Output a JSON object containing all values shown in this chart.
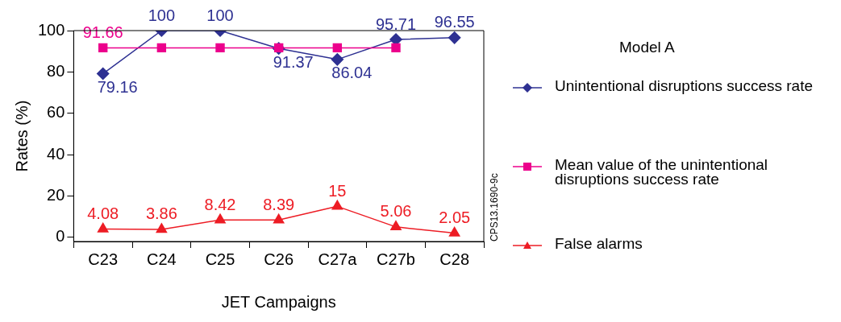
{
  "chart_data": {
    "type": "line",
    "xlabel": "JET Campaigns",
    "ylabel": "Rates (%)",
    "legend_title": "Model A",
    "legend": "right",
    "grid": false,
    "categories": [
      "C23",
      "C24",
      "C25",
      "C26",
      "C27a",
      "C27b",
      "C28"
    ],
    "ylim": [
      -2,
      100
    ],
    "yticks": [
      0,
      20,
      40,
      60,
      80,
      100
    ],
    "series": [
      {
        "name": "Unintentional disruptions success rate",
        "color": "#2e3192",
        "marker": "diamond",
        "values": [
          79.16,
          100,
          100,
          91.37,
          86.04,
          95.71,
          96.55
        ],
        "value_labels": [
          "79.16",
          "100",
          "100",
          "91.37",
          "86.04",
          "95.71",
          "96.55"
        ]
      },
      {
        "name": "Mean value of the unintentional disruptions success rate",
        "color": "#ec008c",
        "marker": "square",
        "values": [
          91.66,
          91.66,
          91.66,
          91.66,
          91.66,
          91.66,
          null
        ],
        "value_labels": [
          "91.66",
          null,
          null,
          null,
          null,
          null,
          null
        ]
      },
      {
        "name": "False alarms",
        "color": "#ed1c24",
        "marker": "triangle",
        "values": [
          4.08,
          3.86,
          8.42,
          8.39,
          15,
          5.06,
          2.05
        ],
        "value_labels": [
          "4.08",
          "3.86",
          "8.42",
          "8.39",
          "15",
          "5.06",
          "2.05"
        ]
      }
    ],
    "annotations": [
      "CPS13.1690-9c"
    ]
  }
}
